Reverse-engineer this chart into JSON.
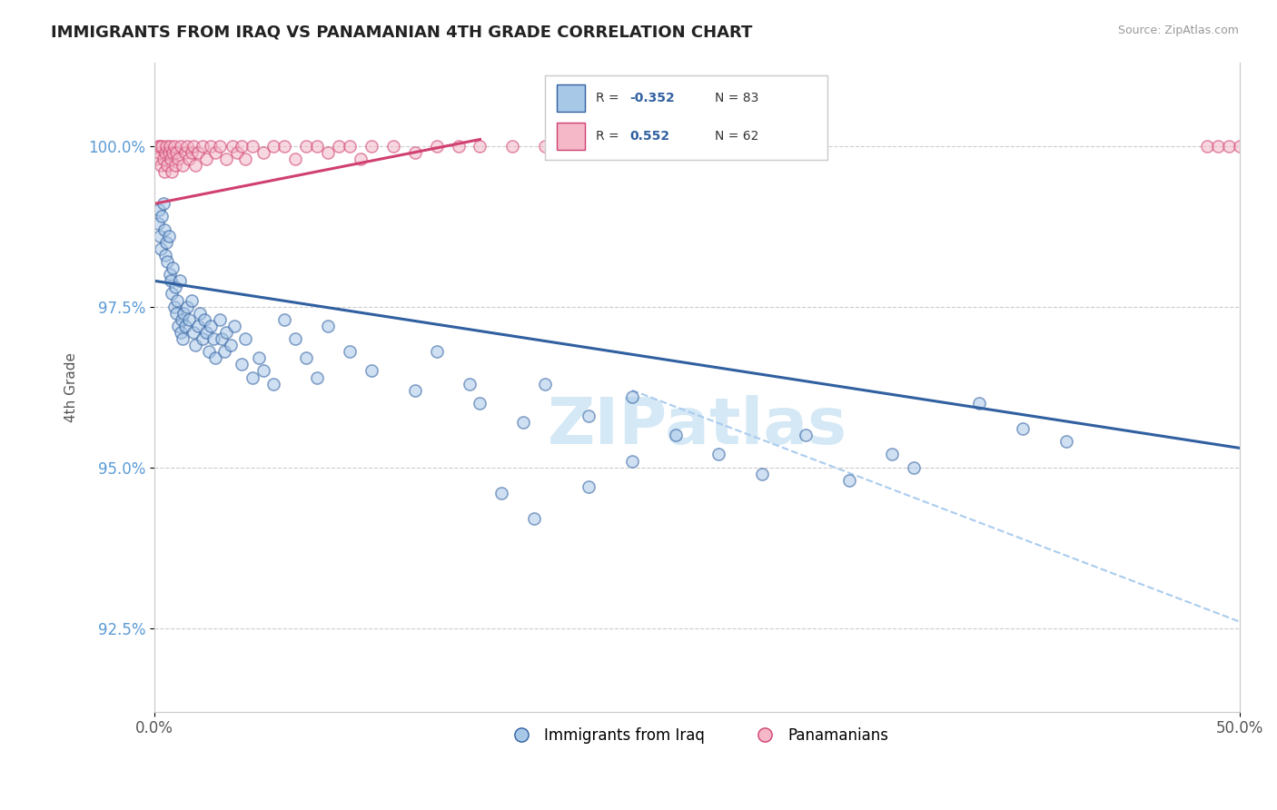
{
  "title": "IMMIGRANTS FROM IRAQ VS PANAMANIAN 4TH GRADE CORRELATION CHART",
  "source": "Source: ZipAtlas.com",
  "ylabel": "4th Grade",
  "y_ticks": [
    92.5,
    95.0,
    97.5,
    100.0
  ],
  "y_tick_labels": [
    "92.5%",
    "95.0%",
    "97.5%",
    "100.0%"
  ],
  "x_range": [
    0.0,
    50.0
  ],
  "y_range": [
    91.2,
    101.3
  ],
  "legend_label1": "Immigrants from Iraq",
  "legend_label2": "Panamanians",
  "color_blue": "#a8c8e8",
  "color_pink": "#f4b8c8",
  "trendline_blue": "#3060a0",
  "trendline_pink": "#d04070",
  "watermark": "ZIPatlas",
  "iraq_trend": [
    0.0,
    97.9,
    50.0,
    95.3
  ],
  "panama_trend": [
    0.0,
    99.1,
    15.0,
    100.1
  ],
  "dashed_trend": [
    22.0,
    96.2,
    50.0,
    92.6
  ],
  "iraq_points": [
    [
      0.15,
      98.8
    ],
    [
      0.2,
      99.0
    ],
    [
      0.25,
      98.6
    ],
    [
      0.3,
      98.4
    ],
    [
      0.35,
      98.9
    ],
    [
      0.4,
      99.1
    ],
    [
      0.45,
      98.7
    ],
    [
      0.5,
      98.3
    ],
    [
      0.55,
      98.5
    ],
    [
      0.6,
      98.2
    ],
    [
      0.65,
      98.6
    ],
    [
      0.7,
      98.0
    ],
    [
      0.75,
      97.9
    ],
    [
      0.8,
      97.7
    ],
    [
      0.85,
      98.1
    ],
    [
      0.9,
      97.5
    ],
    [
      0.95,
      97.8
    ],
    [
      1.0,
      97.4
    ],
    [
      1.05,
      97.6
    ],
    [
      1.1,
      97.2
    ],
    [
      1.15,
      97.9
    ],
    [
      1.2,
      97.1
    ],
    [
      1.25,
      97.3
    ],
    [
      1.3,
      97.0
    ],
    [
      1.35,
      97.4
    ],
    [
      1.4,
      97.2
    ],
    [
      1.5,
      97.5
    ],
    [
      1.6,
      97.3
    ],
    [
      1.7,
      97.6
    ],
    [
      1.8,
      97.1
    ],
    [
      1.9,
      96.9
    ],
    [
      2.0,
      97.2
    ],
    [
      2.1,
      97.4
    ],
    [
      2.2,
      97.0
    ],
    [
      2.3,
      97.3
    ],
    [
      2.4,
      97.1
    ],
    [
      2.5,
      96.8
    ],
    [
      2.6,
      97.2
    ],
    [
      2.7,
      97.0
    ],
    [
      2.8,
      96.7
    ],
    [
      3.0,
      97.3
    ],
    [
      3.1,
      97.0
    ],
    [
      3.2,
      96.8
    ],
    [
      3.3,
      97.1
    ],
    [
      3.5,
      96.9
    ],
    [
      3.7,
      97.2
    ],
    [
      4.0,
      96.6
    ],
    [
      4.2,
      97.0
    ],
    [
      4.5,
      96.4
    ],
    [
      4.8,
      96.7
    ],
    [
      5.0,
      96.5
    ],
    [
      5.5,
      96.3
    ],
    [
      6.0,
      97.3
    ],
    [
      6.5,
      97.0
    ],
    [
      7.0,
      96.7
    ],
    [
      7.5,
      96.4
    ],
    [
      8.0,
      97.2
    ],
    [
      9.0,
      96.8
    ],
    [
      10.0,
      96.5
    ],
    [
      12.0,
      96.2
    ],
    [
      13.0,
      96.8
    ],
    [
      14.5,
      96.3
    ],
    [
      15.0,
      96.0
    ],
    [
      17.0,
      95.7
    ],
    [
      18.0,
      96.3
    ],
    [
      20.0,
      95.8
    ],
    [
      22.0,
      96.1
    ],
    [
      24.0,
      95.5
    ],
    [
      26.0,
      95.2
    ],
    [
      28.0,
      94.9
    ],
    [
      30.0,
      95.5
    ],
    [
      32.0,
      94.8
    ],
    [
      34.0,
      95.2
    ],
    [
      35.0,
      95.0
    ],
    [
      38.0,
      96.0
    ],
    [
      40.0,
      95.6
    ],
    [
      42.0,
      95.4
    ],
    [
      16.0,
      94.6
    ],
    [
      17.5,
      94.2
    ],
    [
      20.0,
      94.7
    ],
    [
      22.0,
      95.1
    ]
  ],
  "panama_points": [
    [
      0.1,
      99.8
    ],
    [
      0.15,
      100.0
    ],
    [
      0.2,
      99.9
    ],
    [
      0.25,
      100.0
    ],
    [
      0.3,
      99.7
    ],
    [
      0.35,
      100.0
    ],
    [
      0.4,
      99.8
    ],
    [
      0.45,
      99.6
    ],
    [
      0.5,
      99.9
    ],
    [
      0.55,
      100.0
    ],
    [
      0.6,
      99.7
    ],
    [
      0.65,
      99.9
    ],
    [
      0.7,
      100.0
    ],
    [
      0.75,
      99.8
    ],
    [
      0.8,
      99.6
    ],
    [
      0.85,
      99.9
    ],
    [
      0.9,
      100.0
    ],
    [
      0.95,
      99.7
    ],
    [
      1.0,
      99.9
    ],
    [
      1.1,
      99.8
    ],
    [
      1.2,
      100.0
    ],
    [
      1.3,
      99.7
    ],
    [
      1.4,
      99.9
    ],
    [
      1.5,
      100.0
    ],
    [
      1.6,
      99.8
    ],
    [
      1.7,
      99.9
    ],
    [
      1.8,
      100.0
    ],
    [
      1.9,
      99.7
    ],
    [
      2.0,
      99.9
    ],
    [
      2.2,
      100.0
    ],
    [
      2.4,
      99.8
    ],
    [
      2.6,
      100.0
    ],
    [
      2.8,
      99.9
    ],
    [
      3.0,
      100.0
    ],
    [
      3.3,
      99.8
    ],
    [
      3.6,
      100.0
    ],
    [
      3.8,
      99.9
    ],
    [
      4.0,
      100.0
    ],
    [
      4.2,
      99.8
    ],
    [
      4.5,
      100.0
    ],
    [
      5.0,
      99.9
    ],
    [
      5.5,
      100.0
    ],
    [
      6.0,
      100.0
    ],
    [
      6.5,
      99.8
    ],
    [
      7.0,
      100.0
    ],
    [
      7.5,
      100.0
    ],
    [
      8.0,
      99.9
    ],
    [
      8.5,
      100.0
    ],
    [
      9.0,
      100.0
    ],
    [
      9.5,
      99.8
    ],
    [
      10.0,
      100.0
    ],
    [
      11.0,
      100.0
    ],
    [
      12.0,
      99.9
    ],
    [
      13.0,
      100.0
    ],
    [
      14.0,
      100.0
    ],
    [
      15.0,
      100.0
    ],
    [
      16.5,
      100.0
    ],
    [
      18.0,
      100.0
    ],
    [
      48.5,
      100.0
    ],
    [
      49.0,
      100.0
    ],
    [
      49.5,
      100.0
    ],
    [
      50.0,
      100.0
    ]
  ]
}
